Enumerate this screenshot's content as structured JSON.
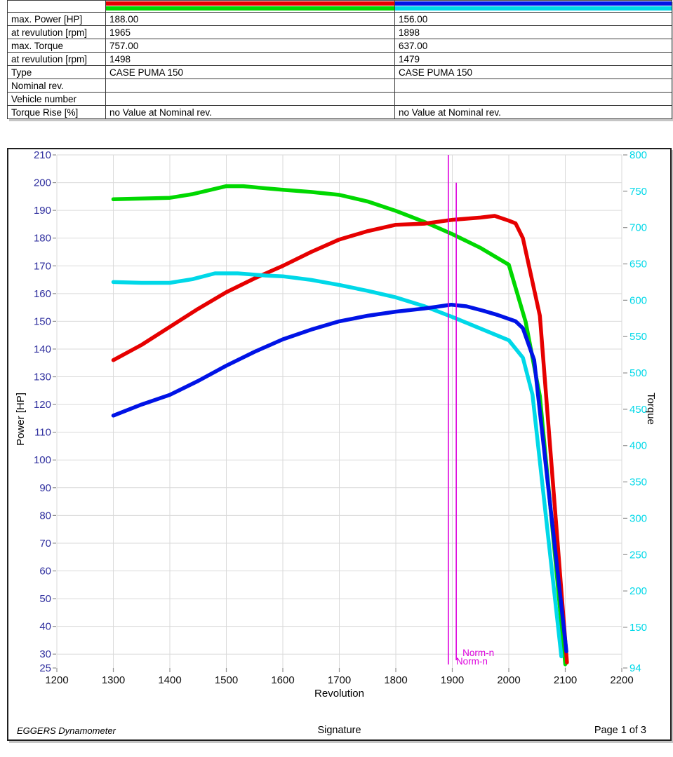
{
  "report_table": {
    "rows": [
      {
        "label": "max. Power [HP]",
        "run1": "188.00",
        "run2": "156.00"
      },
      {
        "label": "at revulution [rpm]",
        "run1": "1965",
        "run2": "1898"
      },
      {
        "label": "max. Torque",
        "run1": "757.00",
        "run2": "637.00"
      },
      {
        "label": "at revulution [rpm]",
        "run1": "1498",
        "run2": "1479"
      },
      {
        "label": "Type",
        "run1": "CASE PUMA 150",
        "run2": "CASE PUMA 150"
      },
      {
        "label": "Nominal rev.",
        "run1": "",
        "run2": ""
      },
      {
        "label": "Vehicle number",
        "run1": "",
        "run2": ""
      },
      {
        "label": "Torque Rise [%]",
        "run1": "no Value at Nominal rev.",
        "run2": "no Value at Nominal rev."
      }
    ],
    "legend": {
      "run1_power_color": "#e60000",
      "run1_torque_color": "#00d800",
      "run2_power_color": "#0013e6",
      "run2_torque_color": "#00d8e8"
    }
  },
  "chart_data": {
    "type": "line",
    "xlabel": "Revolution",
    "ylabel_left": "Power [HP]",
    "ylabel_right": "Torque",
    "x_range": [
      1200,
      2200
    ],
    "y_left_range": [
      25,
      210
    ],
    "y_right_range": [
      94,
      800
    ],
    "x_ticks": [
      1200,
      1300,
      1400,
      1500,
      1600,
      1700,
      1800,
      1900,
      2000,
      2100,
      2200
    ],
    "y_left_ticks": [
      210,
      200,
      190,
      180,
      170,
      160,
      150,
      140,
      130,
      120,
      110,
      100,
      90,
      80,
      70,
      60,
      50,
      40,
      30,
      25
    ],
    "y_right_ticks": [
      800,
      750,
      700,
      650,
      600,
      550,
      500,
      450,
      400,
      350,
      300,
      250,
      200,
      150,
      94
    ],
    "grid": true,
    "axis_colors": {
      "left": "#2e2e9e",
      "right": "#00d8e8",
      "x": "#111111",
      "grid": "#dadada",
      "tick": "#909090"
    },
    "annotations": [
      {
        "label": "Norm-n",
        "x": 1893,
        "top_hp": 210,
        "color": "#dd00dd"
      },
      {
        "label": "Norm-n",
        "x": 1907,
        "top_hp": 200,
        "color": "#dd00dd"
      }
    ],
    "series": [
      {
        "name": "torque-run1",
        "axis": "right",
        "color": "#00d800",
        "points": [
          [
            1300,
            739
          ],
          [
            1350,
            740
          ],
          [
            1400,
            741
          ],
          [
            1440,
            746
          ],
          [
            1500,
            757
          ],
          [
            1530,
            757
          ],
          [
            1570,
            754
          ],
          [
            1600,
            752
          ],
          [
            1650,
            749
          ],
          [
            1700,
            745
          ],
          [
            1750,
            736
          ],
          [
            1800,
            723
          ],
          [
            1850,
            708
          ],
          [
            1900,
            691
          ],
          [
            1950,
            672
          ],
          [
            2000,
            649
          ],
          [
            2030,
            570
          ],
          [
            2055,
            468
          ],
          [
            2100,
            99
          ]
        ]
      },
      {
        "name": "power-run1",
        "axis": "left",
        "color": "#e60000",
        "points": [
          [
            1300,
            136
          ],
          [
            1350,
            141.5
          ],
          [
            1400,
            148
          ],
          [
            1450,
            154.5
          ],
          [
            1500,
            160.5
          ],
          [
            1550,
            165.5
          ],
          [
            1600,
            170
          ],
          [
            1650,
            175
          ],
          [
            1700,
            179.5
          ],
          [
            1750,
            182.5
          ],
          [
            1800,
            184.8
          ],
          [
            1850,
            185.2
          ],
          [
            1900,
            186.6
          ],
          [
            1950,
            187.4
          ],
          [
            1975,
            188
          ],
          [
            2000,
            186.3
          ],
          [
            2012,
            185.3
          ],
          [
            2025,
            180
          ],
          [
            2040,
            166
          ],
          [
            2055,
            152
          ],
          [
            2103,
            27
          ]
        ]
      },
      {
        "name": "torque-run2",
        "axis": "right",
        "color": "#00d8e8",
        "points": [
          [
            1300,
            625
          ],
          [
            1350,
            624
          ],
          [
            1400,
            624
          ],
          [
            1440,
            629
          ],
          [
            1480,
            637
          ],
          [
            1520,
            637
          ],
          [
            1570,
            634
          ],
          [
            1600,
            633
          ],
          [
            1650,
            628
          ],
          [
            1700,
            621
          ],
          [
            1750,
            613
          ],
          [
            1800,
            604
          ],
          [
            1850,
            592
          ],
          [
            1900,
            577
          ],
          [
            1950,
            561
          ],
          [
            2000,
            545
          ],
          [
            2025,
            521
          ],
          [
            2042,
            470
          ],
          [
            2093,
            110
          ]
        ]
      },
      {
        "name": "power-run2",
        "axis": "left",
        "color": "#0013e6",
        "points": [
          [
            1300,
            116
          ],
          [
            1350,
            120
          ],
          [
            1400,
            123.5
          ],
          [
            1450,
            128.5
          ],
          [
            1500,
            134
          ],
          [
            1550,
            139
          ],
          [
            1600,
            143.5
          ],
          [
            1650,
            147
          ],
          [
            1700,
            150
          ],
          [
            1750,
            152
          ],
          [
            1800,
            153.5
          ],
          [
            1850,
            154.6
          ],
          [
            1898,
            156
          ],
          [
            1925,
            155.4
          ],
          [
            1955,
            153.8
          ],
          [
            1980,
            152.3
          ],
          [
            2012,
            150
          ],
          [
            2025,
            147.5
          ],
          [
            2045,
            136
          ],
          [
            2102,
            31
          ]
        ]
      }
    ]
  },
  "footer": {
    "left": "EGGERS Dynamometer",
    "center": "Signature",
    "right": "Page 1 of 3"
  }
}
